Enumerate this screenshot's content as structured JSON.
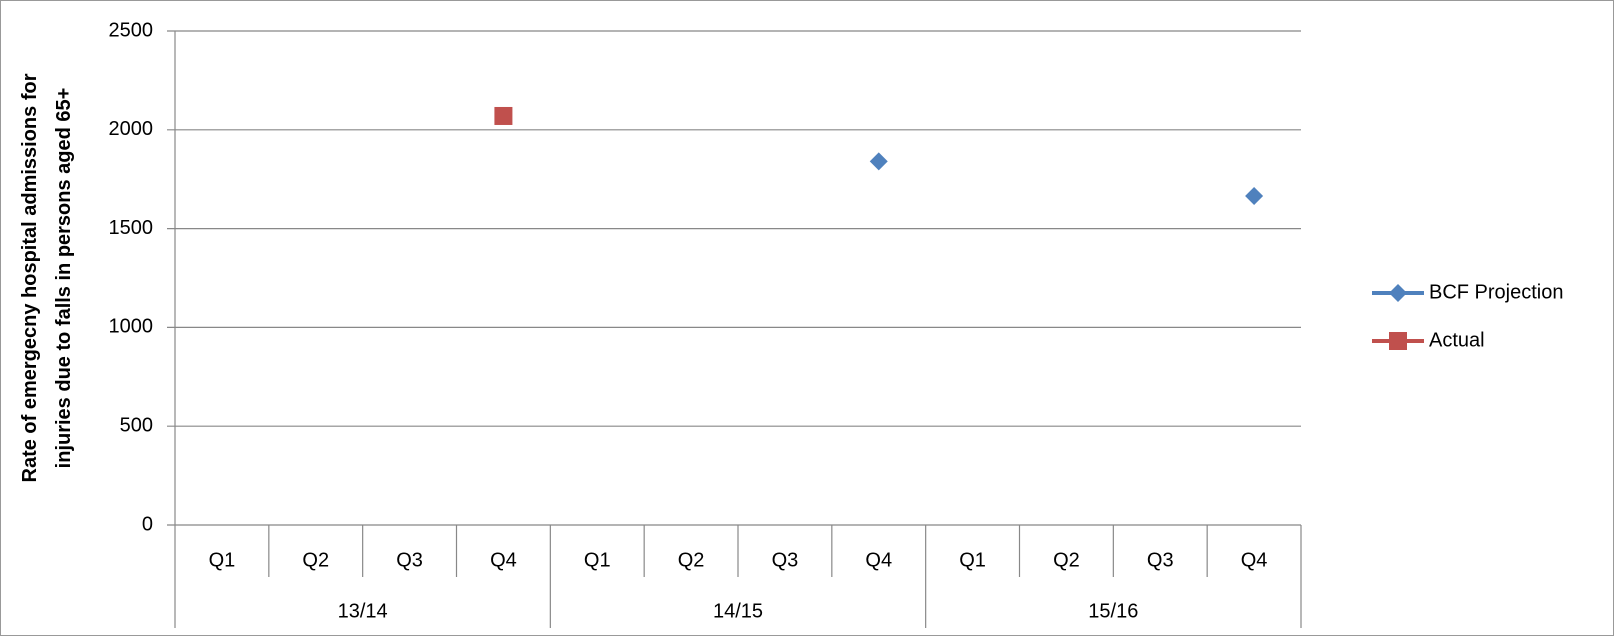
{
  "chart_data": {
    "type": "line",
    "y_label": "Rate of  emergecny hospital admissions for injuries due to falls in persons aged 65+",
    "categories": [
      "Q1",
      "Q2",
      "Q3",
      "Q4",
      "Q1",
      "Q2",
      "Q3",
      "Q4",
      "Q1",
      "Q2",
      "Q3",
      "Q4"
    ],
    "groups": [
      "13/14",
      "14/15",
      "15/16"
    ],
    "series": [
      {
        "name": "BCF Projection",
        "color": "#4f81bd",
        "marker": "diamond",
        "values": [
          null,
          null,
          null,
          null,
          null,
          null,
          null,
          1840,
          null,
          null,
          null,
          1665
        ]
      },
      {
        "name": "Actual",
        "color": "#c0504d",
        "marker": "square",
        "values": [
          null,
          null,
          null,
          2070,
          null,
          null,
          null,
          null,
          null,
          null,
          null,
          null
        ]
      }
    ],
    "ylim": [
      0,
      2500
    ],
    "yticks": [
      0,
      500,
      1000,
      1500,
      2000,
      2500
    ],
    "grid": true,
    "legend": "right"
  }
}
